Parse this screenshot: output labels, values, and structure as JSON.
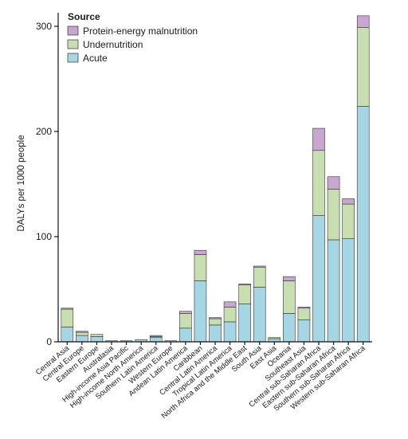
{
  "chart_data": {
    "type": "bar",
    "stacked": true,
    "ylabel": "DALYs per 1000 people",
    "ylim": [
      0,
      300
    ],
    "yticks": [
      0,
      100,
      200,
      300
    ],
    "legend": {
      "title": "Source",
      "placement": "top-left",
      "entries": [
        {
          "name": "Protein-energy malnutrition",
          "color": "#c9a6cf"
        },
        {
          "name": "Undernutrition",
          "color": "#c8ddb0"
        },
        {
          "name": "Acute",
          "color": "#a6d5e4"
        }
      ]
    },
    "categories": [
      "Central Asia",
      "Central Europe",
      "Eastern Europe",
      "Australasia",
      "High-income Asia Pacific",
      "High-income North America",
      "Southern Latin America",
      "Western Europe",
      "Andean Latin America",
      "Caribbean",
      "Central Latin America",
      "Tropical Latin America",
      "North Africa and the Middle East",
      "South Asia",
      "East Asia",
      "Oceania",
      "Southeast Asia",
      "Central sub-Saharan Africa",
      "Eastern sub-Saharan Africa",
      "Southern sub-Saharan Africa",
      "Western sub-Saharan Africa"
    ],
    "series": [
      {
        "name": "Acute",
        "color": "#a6d5e4",
        "values": [
          14,
          6,
          5,
          1,
          1,
          2,
          4,
          1,
          13,
          58,
          16,
          19,
          36,
          52,
          3,
          27,
          21,
          120,
          97,
          98,
          224
        ]
      },
      {
        "name": "Undernutrition",
        "color": "#c8ddb0",
        "values": [
          17,
          3,
          2,
          0,
          0,
          0,
          1,
          0,
          14,
          25,
          6,
          14,
          18,
          19,
          1,
          31,
          11,
          62,
          48,
          33,
          75
        ]
      },
      {
        "name": "Protein-energy malnutrition",
        "color": "#c9a6cf",
        "values": [
          1,
          1,
          0,
          0,
          0,
          0,
          1,
          0,
          2,
          4,
          1,
          5,
          1,
          1,
          0,
          4,
          1,
          21,
          12,
          5,
          11
        ]
      }
    ]
  }
}
